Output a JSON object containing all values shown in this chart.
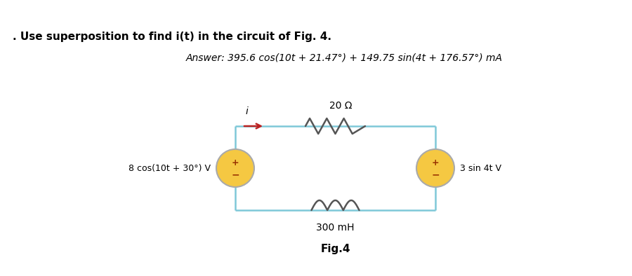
{
  "title_text": ". Use superposition to find i(t) in the circuit of Fig. 4.",
  "answer_text": "Answer: 395.6 cos(10t + 21.47°) + 149.75 sin(4t + 176.57°) mA",
  "fig_label": "Fig.4",
  "resistor_label": "20 Ω",
  "inductor_label": "300 mH",
  "source_left_label": "8 cos(10t + 30°) V",
  "source_right_label": "3 sin 4t V",
  "current_label": "i",
  "circuit_color": "#7ec8d8",
  "source_fill": "#f5c842",
  "source_edge": "#aaaaaa",
  "wire_lw": 1.8,
  "arrow_color": "#bb2222",
  "bg_color": "#ffffff",
  "plus_color": "#aa4400",
  "minus_color": "#aa4400",
  "component_color": "#555555",
  "title_fontsize": 11,
  "answer_fontsize": 10,
  "label_fontsize": 10,
  "fig_fontsize": 11
}
